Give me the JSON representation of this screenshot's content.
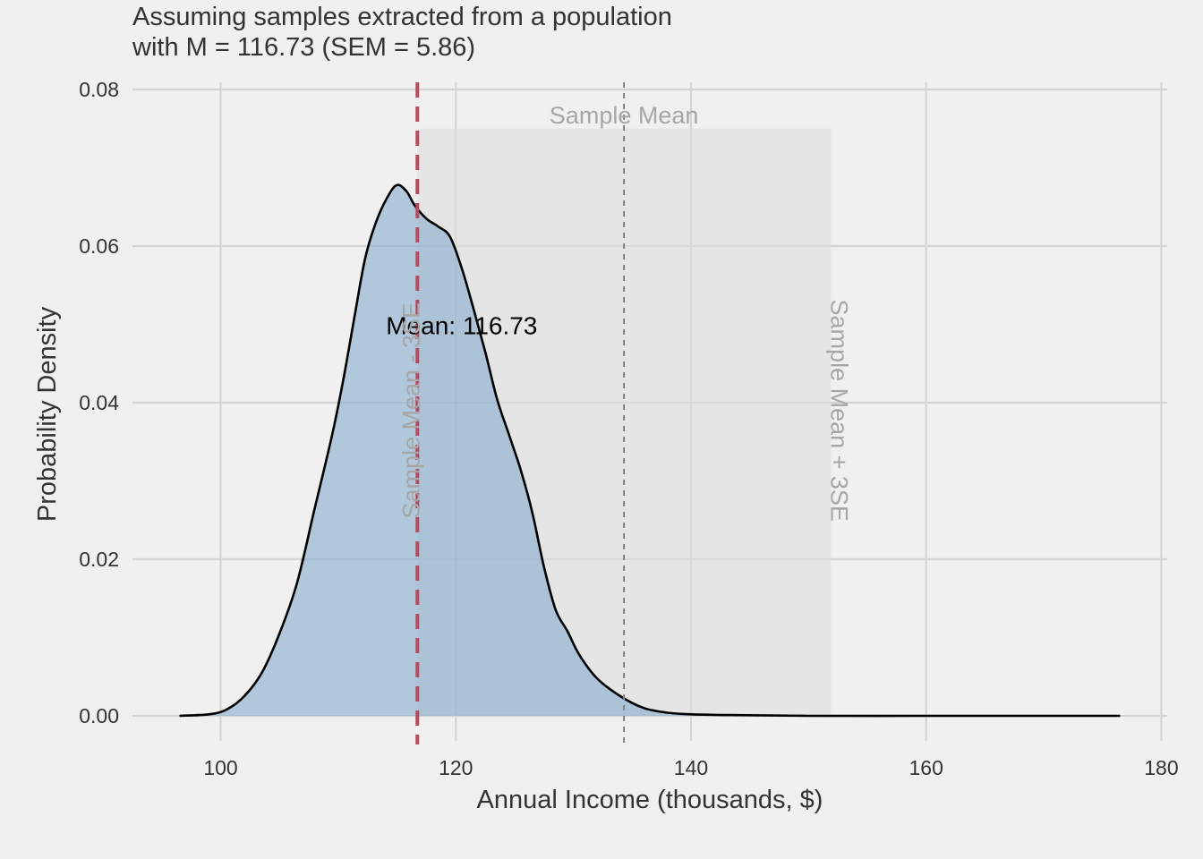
{
  "chart_data": {
    "type": "area",
    "title_line1": "Assuming samples extracted from a population",
    "title_line2": "with M = 116.73 (SEM = 5.86)",
    "xlabel": "Annual Income (thousands, $)",
    "ylabel": "Probability Density",
    "xlim": [
      92.5,
      180.5
    ],
    "ylim": [
      0,
      0.08
    ],
    "x_ticks": [
      100,
      120,
      140,
      160,
      180
    ],
    "y_ticks": [
      0.0,
      0.02,
      0.04,
      0.06,
      0.08
    ],
    "x_tick_labels": [
      "100",
      "120",
      "140",
      "160",
      "180"
    ],
    "y_tick_labels": [
      "0.00",
      "0.02",
      "0.04",
      "0.06",
      "0.08"
    ],
    "grid": true,
    "density": {
      "x": [
        96.5,
        99,
        100.5,
        102,
        103.5,
        105,
        106.5,
        108,
        109.5,
        110.5,
        111.5,
        112.3,
        113.2,
        114.2,
        115,
        115.8,
        116.5,
        117.5,
        118.5,
        119.5,
        120.5,
        121.5,
        122.5,
        123.5,
        124.5,
        125.5,
        126.5,
        127.5,
        128.5,
        129.5,
        130.5,
        132,
        134,
        136,
        138,
        140,
        143,
        150,
        160,
        170,
        176.5
      ],
      "y": [
        0.0,
        0.0002,
        0.0008,
        0.0025,
        0.0055,
        0.0105,
        0.017,
        0.0265,
        0.036,
        0.0435,
        0.052,
        0.0585,
        0.063,
        0.0663,
        0.0678,
        0.067,
        0.0652,
        0.0635,
        0.0625,
        0.0612,
        0.0572,
        0.052,
        0.0465,
        0.0405,
        0.036,
        0.0315,
        0.026,
        0.019,
        0.0135,
        0.0108,
        0.0078,
        0.0048,
        0.0025,
        0.001,
        0.0004,
        0.0002,
        0.0001,
        0.0,
        0.0,
        0.0,
        0.0
      ],
      "fill_color": "#a1bcd4",
      "line_color": "#000000"
    },
    "range_band": {
      "x_start": 116.73,
      "x_end": 151.9,
      "y_top": 0.075,
      "color": "#dcdcdc"
    },
    "population_mean_line": {
      "x": 116.73,
      "color": "#b84a5e",
      "style": "dashed"
    },
    "sample_mean_line": {
      "x": 134.3,
      "color": "#808080",
      "style": "dotted"
    },
    "annotations": {
      "mean_label": {
        "text": "Mean: 116.73",
        "x": 120.5,
        "y": 0.0498
      },
      "sample_mean": {
        "text": "Sample Mean",
        "x": 134.3,
        "y": 0.0767
      },
      "lower_bound": {
        "text": "Sample Mean - 3SE",
        "x": 116.2,
        "y": 0.039
      },
      "upper_bound": {
        "text": "Sample Mean + 3SE",
        "x": 152.6,
        "y": 0.039
      }
    }
  }
}
